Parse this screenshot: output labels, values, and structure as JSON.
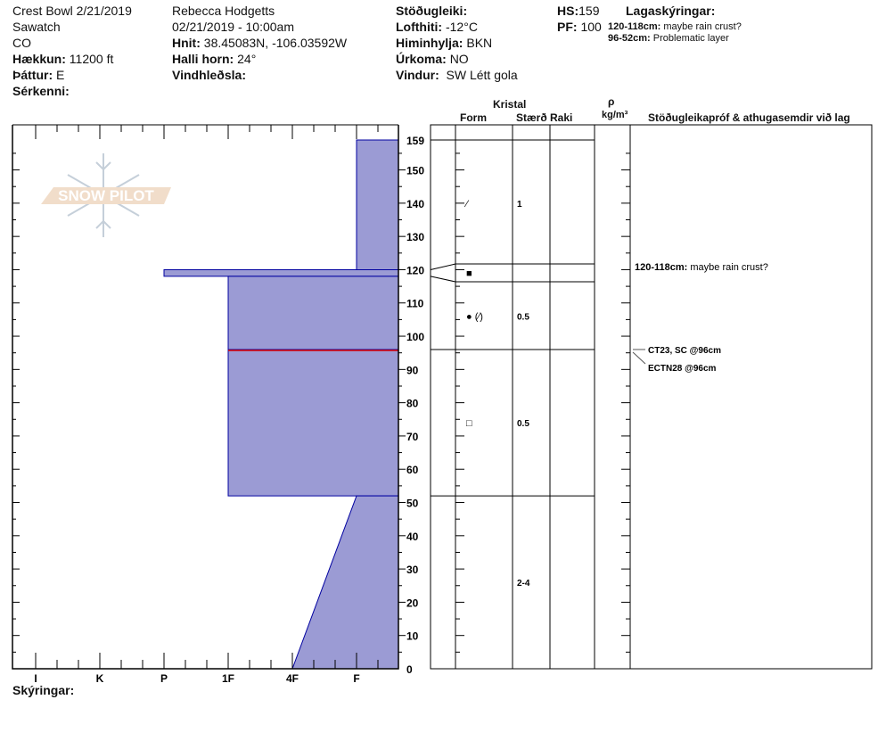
{
  "header": {
    "location": "Crest Bowl 2/21/2019",
    "range": "Sawatch",
    "state": "CO",
    "elevation_label": "Hækkun:",
    "elevation": "11200 ft",
    "aspect_label": "Þáttur:",
    "aspect": "E",
    "features_label": "Sérkenni:",
    "observer": "Rebecca Hodgetts",
    "datetime": "02/21/2019 - 10:00am",
    "coords_label": "Hnit:",
    "coords": "38.45083N, -106.03592W",
    "slope_label": "Halli horn:",
    "slope": "24°",
    "wind_loading_label": "Vindhleðsla:",
    "stability_label": "Stöðugleiki:",
    "air_temp_label": "Lofthiti:",
    "air_temp": "-12°C",
    "sky_label": "Himinhylja:",
    "sky": "BKN",
    "precip_label": "Úrkoma:",
    "precip": "NO",
    "wind_label": "Vindur:",
    "wind": "SW Létt gola",
    "hs_label": "HS:",
    "hs": "159",
    "pf_label": "PF:",
    "pf": "100",
    "layer_notes_label": "Lagaskýringar:",
    "layer_notes": [
      {
        "range": "120-118cm:",
        "text": "maybe rain crust?"
      },
      {
        "range": "96-52cm:",
        "text": "Problematic layer"
      }
    ]
  },
  "columns": {
    "crystal": "Kristal",
    "form": "Form",
    "size": "Stærð",
    "moisture": "Raki",
    "rho": "ρ",
    "density": "kg/m³",
    "comments": "Stöðugleikapróf & athugasemdir við lag"
  },
  "legend_label": "Skýringar:",
  "logo_text": "SNOW PILOT",
  "chart_data": {
    "type": "snow-profile",
    "y_axis": {
      "range": [
        0,
        159
      ],
      "ticks": [
        0,
        10,
        20,
        30,
        40,
        50,
        60,
        70,
        80,
        90,
        100,
        110,
        120,
        130,
        140,
        150,
        159
      ],
      "unit": "cm"
    },
    "hardness_ticks": [
      "I",
      "K",
      "P",
      "1F",
      "4F",
      "F"
    ],
    "layers": [
      {
        "top": 159,
        "bottom": 120,
        "hardness_top": "F",
        "hardness_bottom": "F",
        "form": "decomposing",
        "form_symbol": "⁄",
        "size": "1"
      },
      {
        "top": 120,
        "bottom": 118,
        "hardness_top": "P",
        "hardness_bottom": "P",
        "form": "melt-freeze crust",
        "form_symbol": "■",
        "size": ""
      },
      {
        "top": 118,
        "bottom": 96,
        "hardness_top": "1F",
        "hardness_bottom": "1F",
        "form": "rounded (decomposing)",
        "form_symbol": "● (⁄)",
        "size": "0.5"
      },
      {
        "top": 96,
        "bottom": 52,
        "hardness_top": "1F",
        "hardness_bottom": "1F",
        "form": "faceted",
        "form_symbol": "□",
        "size": "0.5"
      },
      {
        "top": 52,
        "bottom": 0,
        "hardness_top": "F",
        "hardness_bottom": "4F",
        "form": "",
        "form_symbol": "",
        "size": "2-4"
      }
    ],
    "critical_layer_depth": 96,
    "comments": [
      {
        "depth": 119,
        "range": "120-118cm:",
        "text": "maybe rain crust?"
      }
    ],
    "tests": [
      {
        "depth": 96,
        "text": "CT23, SC @96cm"
      },
      {
        "depth": 96,
        "text": "ECTN28 @96cm"
      }
    ],
    "colors": {
      "fill": "#9b9bd4",
      "outline": "#0000a0",
      "critical": "#e00000"
    }
  }
}
